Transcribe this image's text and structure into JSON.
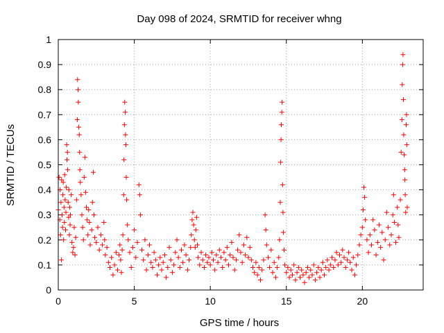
{
  "chart_data": {
    "type": "scatter",
    "title": "Day 098 of 2024, SRMTID for receiver whng",
    "xlabel": "GPS time / hours",
    "ylabel": "SRMTID / TECUs",
    "xlim": [
      0,
      24
    ],
    "ylim": [
      0,
      1
    ],
    "xticks": [
      0,
      5,
      10,
      15,
      20
    ],
    "xtick_labels": [
      "0",
      "5",
      "10",
      "15",
      "20"
    ],
    "yticks": [
      0,
      0.1,
      0.2,
      0.3,
      0.4,
      0.5,
      0.6,
      0.7,
      0.8,
      0.9,
      1
    ],
    "ytick_labels": [
      "0",
      "0.1",
      "0.2",
      "0.3",
      "0.4",
      "0.5",
      "0.6",
      "0.7",
      "0.8",
      "0.9",
      "1"
    ],
    "grid": true,
    "marker": "plus",
    "color": "#ff0000",
    "series": [
      {
        "name": "SRMTID",
        "points": [
          [
            0.0,
            0.32
          ],
          [
            0.05,
            0.45
          ],
          [
            0.1,
            0.28
          ],
          [
            0.12,
            0.4
          ],
          [
            0.15,
            0.22
          ],
          [
            0.18,
            0.35
          ],
          [
            0.2,
            0.12
          ],
          [
            0.22,
            0.44
          ],
          [
            0.25,
            0.3
          ],
          [
            0.28,
            0.25
          ],
          [
            0.3,
            0.38
          ],
          [
            0.33,
            0.43
          ],
          [
            0.35,
            0.2
          ],
          [
            0.38,
            0.33
          ],
          [
            0.4,
            0.27
          ],
          [
            0.42,
            0.46
          ],
          [
            0.45,
            0.36
          ],
          [
            0.48,
            0.24
          ],
          [
            0.5,
            0.31
          ],
          [
            0.53,
            0.41
          ],
          [
            0.55,
            0.58
          ],
          [
            0.57,
            0.52
          ],
          [
            0.6,
            0.55
          ],
          [
            0.62,
            0.48
          ],
          [
            0.65,
            0.35
          ],
          [
            0.68,
            0.29
          ],
          [
            0.7,
            0.4
          ],
          [
            0.73,
            0.22
          ],
          [
            0.75,
            0.33
          ],
          [
            0.78,
            0.26
          ],
          [
            0.8,
            0.3
          ],
          [
            0.85,
            0.38
          ],
          [
            0.9,
            0.19
          ],
          [
            0.95,
            0.15
          ],
          [
            1.0,
            0.17
          ],
          [
            1.05,
            0.25
          ],
          [
            1.1,
            0.14
          ],
          [
            1.15,
            0.21
          ],
          [
            1.2,
            0.36
          ],
          [
            1.25,
            0.68
          ],
          [
            1.27,
            0.84
          ],
          [
            1.3,
            0.8
          ],
          [
            1.32,
            0.75
          ],
          [
            1.35,
            0.65
          ],
          [
            1.38,
            0.62
          ],
          [
            1.4,
            0.55
          ],
          [
            1.42,
            0.48
          ],
          [
            1.45,
            0.43
          ],
          [
            1.5,
            0.38
          ],
          [
            1.55,
            0.3
          ],
          [
            1.6,
            0.25
          ],
          [
            1.65,
            0.2
          ],
          [
            1.7,
            0.45
          ],
          [
            1.75,
            0.53
          ],
          [
            1.8,
            0.39
          ],
          [
            1.85,
            0.33
          ],
          [
            1.9,
            0.28
          ],
          [
            1.95,
            0.22
          ],
          [
            2.0,
            0.32
          ],
          [
            2.05,
            0.27
          ],
          [
            2.1,
            0.18
          ],
          [
            2.2,
            0.24
          ],
          [
            2.25,
            0.35
          ],
          [
            2.3,
            0.47
          ],
          [
            2.35,
            0.3
          ],
          [
            2.4,
            0.21
          ],
          [
            2.5,
            0.19
          ],
          [
            2.6,
            0.25
          ],
          [
            2.7,
            0.16
          ],
          [
            2.8,
            0.22
          ],
          [
            2.9,
            0.18
          ],
          [
            3.0,
            0.27
          ],
          [
            3.05,
            0.2
          ],
          [
            3.1,
            0.14
          ],
          [
            3.2,
            0.17
          ],
          [
            3.3,
            0.11
          ],
          [
            3.4,
            0.09
          ],
          [
            3.5,
            0.13
          ],
          [
            3.6,
            0.06
          ],
          [
            3.7,
            0.1
          ],
          [
            3.8,
            0.15
          ],
          [
            3.9,
            0.08
          ],
          [
            4.0,
            0.14
          ],
          [
            4.05,
            0.18
          ],
          [
            4.1,
            0.12
          ],
          [
            4.15,
            0.07
          ],
          [
            4.2,
            0.16
          ],
          [
            4.25,
            0.22
          ],
          [
            4.3,
            0.38
          ],
          [
            4.32,
            0.52
          ],
          [
            4.35,
            0.66
          ],
          [
            4.37,
            0.75
          ],
          [
            4.4,
            0.71
          ],
          [
            4.42,
            0.62
          ],
          [
            4.45,
            0.58
          ],
          [
            4.47,
            0.45
          ],
          [
            4.5,
            0.36
          ],
          [
            4.55,
            0.26
          ],
          [
            4.6,
            0.2
          ],
          [
            4.7,
            0.15
          ],
          [
            4.8,
            0.09
          ],
          [
            4.9,
            0.17
          ],
          [
            5.0,
            0.24
          ],
          [
            5.1,
            0.13
          ],
          [
            5.2,
            0.19
          ],
          [
            5.3,
            0.42
          ],
          [
            5.35,
            0.38
          ],
          [
            5.4,
            0.3
          ],
          [
            5.5,
            0.16
          ],
          [
            5.6,
            0.12
          ],
          [
            5.7,
            0.2
          ],
          [
            5.8,
            0.08
          ],
          [
            5.9,
            0.14
          ],
          [
            6.0,
            0.18
          ],
          [
            6.1,
            0.11
          ],
          [
            6.2,
            0.09
          ],
          [
            6.3,
            0.15
          ],
          [
            6.4,
            0.12
          ],
          [
            6.5,
            0.06
          ],
          [
            6.6,
            0.1
          ],
          [
            6.7,
            0.13
          ],
          [
            6.8,
            0.08
          ],
          [
            6.9,
            0.11
          ],
          [
            7.0,
            0.14
          ],
          [
            7.1,
            0.05
          ],
          [
            7.2,
            0.09
          ],
          [
            7.3,
            0.17
          ],
          [
            7.4,
            0.12
          ],
          [
            7.5,
            0.07
          ],
          [
            7.6,
            0.1
          ],
          [
            7.7,
            0.15
          ],
          [
            7.8,
            0.2
          ],
          [
            7.9,
            0.13
          ],
          [
            8.0,
            0.09
          ],
          [
            8.1,
            0.16
          ],
          [
            8.2,
            0.11
          ],
          [
            8.3,
            0.18
          ],
          [
            8.4,
            0.14
          ],
          [
            8.5,
            0.08
          ],
          [
            8.6,
            0.12
          ],
          [
            8.7,
            0.17
          ],
          [
            8.75,
            0.22
          ],
          [
            8.8,
            0.28
          ],
          [
            8.85,
            0.31
          ],
          [
            8.9,
            0.26
          ],
          [
            8.95,
            0.2
          ],
          [
            9.0,
            0.17
          ],
          [
            9.05,
            0.24
          ],
          [
            9.1,
            0.29
          ],
          [
            9.15,
            0.18
          ],
          [
            9.2,
            0.13
          ],
          [
            9.3,
            0.1
          ],
          [
            9.4,
            0.15
          ],
          [
            9.5,
            0.12
          ],
          [
            9.6,
            0.09
          ],
          [
            9.7,
            0.14
          ],
          [
            9.8,
            0.11
          ],
          [
            9.9,
            0.13
          ],
          [
            10.0,
            0.1
          ],
          [
            10.1,
            0.15
          ],
          [
            10.2,
            0.12
          ],
          [
            10.3,
            0.08
          ],
          [
            10.4,
            0.14
          ],
          [
            10.5,
            0.11
          ],
          [
            10.6,
            0.16
          ],
          [
            10.7,
            0.13
          ],
          [
            10.8,
            0.09
          ],
          [
            10.9,
            0.15
          ],
          [
            11.0,
            0.12
          ],
          [
            11.1,
            0.17
          ],
          [
            11.2,
            0.1
          ],
          [
            11.3,
            0.14
          ],
          [
            11.4,
            0.19
          ],
          [
            11.5,
            0.13
          ],
          [
            11.6,
            0.08
          ],
          [
            11.7,
            0.12
          ],
          [
            11.8,
            0.16
          ],
          [
            11.9,
            0.22
          ],
          [
            12.0,
            0.15
          ],
          [
            12.1,
            0.11
          ],
          [
            12.2,
            0.18
          ],
          [
            12.3,
            0.14
          ],
          [
            12.4,
            0.21
          ],
          [
            12.5,
            0.13
          ],
          [
            12.6,
            0.17
          ],
          [
            12.7,
            0.12
          ],
          [
            12.8,
            0.09
          ],
          [
            12.9,
            0.07
          ],
          [
            13.0,
            0.11
          ],
          [
            13.1,
            0.06
          ],
          [
            13.2,
            0.09
          ],
          [
            13.3,
            0.04
          ],
          [
            13.4,
            0.08
          ],
          [
            13.5,
            0.12
          ],
          [
            13.6,
            0.3
          ],
          [
            13.65,
            0.24
          ],
          [
            13.7,
            0.18
          ],
          [
            13.8,
            0.13
          ],
          [
            13.9,
            0.09
          ],
          [
            14.0,
            0.16
          ],
          [
            14.1,
            0.07
          ],
          [
            14.2,
            0.11
          ],
          [
            14.3,
            0.05
          ],
          [
            14.4,
            0.09
          ],
          [
            14.5,
            0.13
          ],
          [
            14.55,
            0.2
          ],
          [
            14.6,
            0.35
          ],
          [
            14.62,
            0.51
          ],
          [
            14.65,
            0.6
          ],
          [
            14.67,
            0.66
          ],
          [
            14.7,
            0.71
          ],
          [
            14.72,
            0.75
          ],
          [
            14.75,
            0.42
          ],
          [
            14.78,
            0.31
          ],
          [
            14.8,
            0.23
          ],
          [
            14.85,
            0.16
          ],
          [
            14.9,
            0.1
          ],
          [
            15.0,
            0.07
          ],
          [
            15.1,
            0.09
          ],
          [
            15.2,
            0.05
          ],
          [
            15.3,
            0.08
          ],
          [
            15.4,
            0.06
          ],
          [
            15.5,
            0.1
          ],
          [
            15.6,
            0.04
          ],
          [
            15.7,
            0.07
          ],
          [
            15.8,
            0.09
          ],
          [
            15.9,
            0.05
          ],
          [
            16.0,
            0.08
          ],
          [
            16.1,
            0.06
          ],
          [
            16.2,
            0.03
          ],
          [
            16.3,
            0.07
          ],
          [
            16.4,
            0.09
          ],
          [
            16.5,
            0.05
          ],
          [
            16.6,
            0.08
          ],
          [
            16.7,
            0.06
          ],
          [
            16.8,
            0.1
          ],
          [
            16.9,
            0.04
          ],
          [
            17.0,
            0.07
          ],
          [
            17.1,
            0.09
          ],
          [
            17.2,
            0.05
          ],
          [
            17.3,
            0.08
          ],
          [
            17.4,
            0.11
          ],
          [
            17.5,
            0.06
          ],
          [
            17.6,
            0.09
          ],
          [
            17.7,
            0.12
          ],
          [
            17.8,
            0.08
          ],
          [
            17.9,
            0.1
          ],
          [
            18.0,
            0.13
          ],
          [
            18.1,
            0.09
          ],
          [
            18.2,
            0.12
          ],
          [
            18.3,
            0.15
          ],
          [
            18.4,
            0.1
          ],
          [
            18.5,
            0.14
          ],
          [
            18.6,
            0.11
          ],
          [
            18.7,
            0.16
          ],
          [
            18.8,
            0.13
          ],
          [
            18.9,
            0.09
          ],
          [
            19.0,
            0.12
          ],
          [
            19.1,
            0.15
          ],
          [
            19.2,
            0.11
          ],
          [
            19.3,
            0.08
          ],
          [
            19.4,
            0.13
          ],
          [
            19.5,
            0.06
          ],
          [
            19.6,
            0.1
          ],
          [
            19.7,
            0.14
          ],
          [
            19.8,
            0.18
          ],
          [
            19.9,
            0.22
          ],
          [
            20.0,
            0.25
          ],
          [
            20.05,
            0.32
          ],
          [
            20.1,
            0.41
          ],
          [
            20.15,
            0.37
          ],
          [
            20.2,
            0.28
          ],
          [
            20.3,
            0.2
          ],
          [
            20.4,
            0.15
          ],
          [
            20.5,
            0.22
          ],
          [
            20.6,
            0.18
          ],
          [
            20.7,
            0.28
          ],
          [
            20.8,
            0.24
          ],
          [
            20.9,
            0.14
          ],
          [
            21.0,
            0.19
          ],
          [
            21.1,
            0.26
          ],
          [
            21.2,
            0.17
          ],
          [
            21.3,
            0.23
          ],
          [
            21.4,
            0.12
          ],
          [
            21.5,
            0.2
          ],
          [
            21.6,
            0.31
          ],
          [
            21.7,
            0.25
          ],
          [
            21.8,
            0.18
          ],
          [
            21.9,
            0.22
          ],
          [
            22.0,
            0.3
          ],
          [
            22.05,
            0.38
          ],
          [
            22.1,
            0.27
          ],
          [
            22.2,
            0.19
          ],
          [
            22.3,
            0.33
          ],
          [
            22.35,
            0.26
          ],
          [
            22.4,
            0.21
          ],
          [
            22.5,
            0.36
          ],
          [
            22.55,
            0.55
          ],
          [
            22.6,
            0.68
          ],
          [
            22.62,
            0.82
          ],
          [
            22.65,
            0.9
          ],
          [
            22.67,
            0.94
          ],
          [
            22.7,
            0.76
          ],
          [
            22.72,
            0.62
          ],
          [
            22.75,
            0.54
          ],
          [
            22.78,
            0.48
          ],
          [
            22.8,
            0.44
          ],
          [
            22.82,
            0.38
          ],
          [
            22.85,
            0.31
          ],
          [
            22.88,
            0.66
          ],
          [
            22.9,
            0.7
          ],
          [
            22.92,
            0.58
          ],
          [
            22.95,
            0.33
          ]
        ]
      }
    ]
  }
}
